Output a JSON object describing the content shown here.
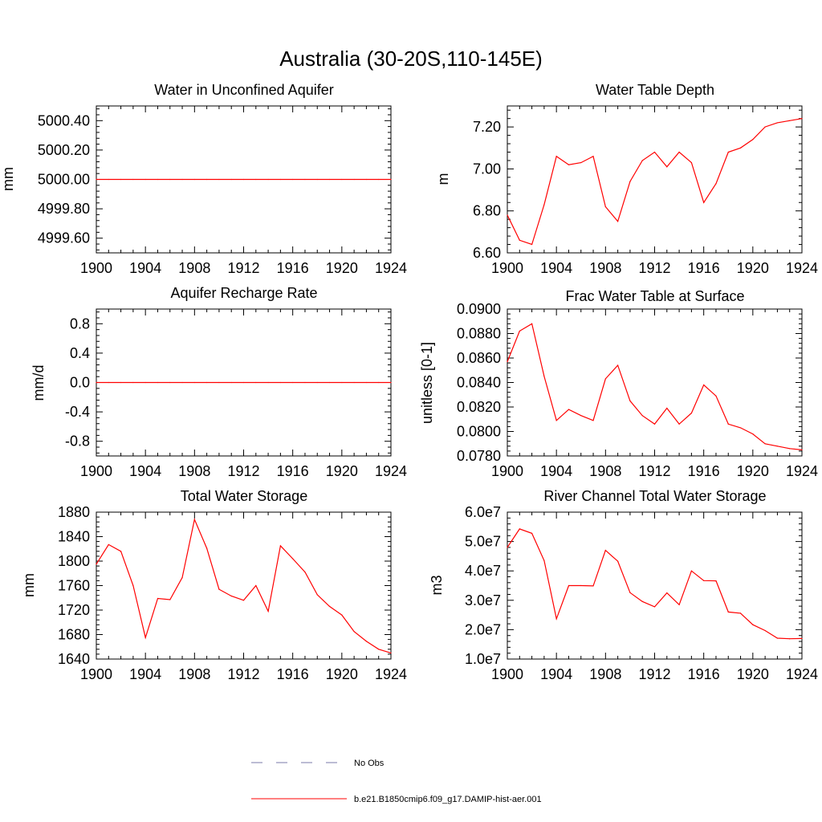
{
  "title": "Australia (30-20S,110-145E)",
  "colors": {
    "model": "#ff0000",
    "obs": "#7a7aa8"
  },
  "legend": {
    "obs_label": "No Obs",
    "model_label": "b.e21.B1850cmip6.f09_g17.DAMIP-hist-aer.001"
  },
  "chart_data": [
    {
      "type": "line",
      "title": "Water in Unconfined Aquifer",
      "ylabel": "mm",
      "xlim": [
        1900,
        1924
      ],
      "ylim": [
        4999.5,
        5000.5
      ],
      "x_ticks": [
        "1900",
        "1904",
        "1908",
        "1912",
        "1916",
        "1920",
        "1924"
      ],
      "y_ticks": [
        "4999.60",
        "4999.80",
        "5000.00",
        "5000.20",
        "5000.40"
      ],
      "x": [
        1900,
        1901,
        1902,
        1903,
        1904,
        1905,
        1906,
        1907,
        1908,
        1909,
        1910,
        1911,
        1912,
        1913,
        1914,
        1915,
        1916,
        1917,
        1918,
        1919,
        1920,
        1921,
        1922,
        1923,
        1924
      ],
      "values": [
        5000,
        5000,
        5000,
        5000,
        5000,
        5000,
        5000,
        5000,
        5000,
        5000,
        5000,
        5000,
        5000,
        5000,
        5000,
        5000,
        5000,
        5000,
        5000,
        5000,
        5000,
        5000,
        5000,
        5000,
        5000
      ]
    },
    {
      "type": "line",
      "title": "Water Table Depth",
      "ylabel": "m",
      "xlim": [
        1900,
        1924
      ],
      "ylim": [
        6.6,
        7.3
      ],
      "x_ticks": [
        "1900",
        "1904",
        "1908",
        "1912",
        "1916",
        "1920",
        "1924"
      ],
      "y_ticks": [
        "6.60",
        "6.80",
        "7.00",
        "7.20"
      ],
      "x": [
        1900,
        1901,
        1902,
        1903,
        1904,
        1905,
        1906,
        1907,
        1908,
        1909,
        1910,
        1911,
        1912,
        1913,
        1914,
        1915,
        1916,
        1917,
        1918,
        1919,
        1920,
        1921,
        1922,
        1923,
        1924
      ],
      "values": [
        6.78,
        6.66,
        6.64,
        6.83,
        7.06,
        7.02,
        7.03,
        7.06,
        6.82,
        6.75,
        6.94,
        7.04,
        7.08,
        7.01,
        7.08,
        7.03,
        6.84,
        6.93,
        7.08,
        7.1,
        7.14,
        7.2,
        7.22,
        7.23,
        7.24
      ]
    },
    {
      "type": "line",
      "title": "Aquifer Recharge Rate",
      "ylabel": "mm/d",
      "xlim": [
        1900,
        1924
      ],
      "ylim": [
        -1.0,
        1.0
      ],
      "x_ticks": [
        "1900",
        "1904",
        "1908",
        "1912",
        "1916",
        "1920",
        "1924"
      ],
      "y_ticks": [
        "-0.8",
        "-0.4",
        "0.0",
        "0.4",
        "0.8"
      ],
      "x": [
        1900,
        1901,
        1902,
        1903,
        1904,
        1905,
        1906,
        1907,
        1908,
        1909,
        1910,
        1911,
        1912,
        1913,
        1914,
        1915,
        1916,
        1917,
        1918,
        1919,
        1920,
        1921,
        1922,
        1923,
        1924
      ],
      "values": [
        0,
        0,
        0,
        0,
        0,
        0,
        0,
        0,
        0,
        0,
        0,
        0,
        0,
        0,
        0,
        0,
        0,
        0,
        0,
        0,
        0,
        0,
        0,
        0,
        0
      ]
    },
    {
      "type": "line",
      "title": "Frac Water Table at Surface",
      "ylabel": "unitless [0-1]",
      "xlim": [
        1900,
        1924
      ],
      "ylim": [
        0.078,
        0.09
      ],
      "x_ticks": [
        "1900",
        "1904",
        "1908",
        "1912",
        "1916",
        "1920",
        "1924"
      ],
      "y_ticks": [
        "0.0780",
        "0.0800",
        "0.0820",
        "0.0840",
        "0.0860",
        "0.0880",
        "0.0900"
      ],
      "x": [
        1900,
        1901,
        1902,
        1903,
        1904,
        1905,
        1906,
        1907,
        1908,
        1909,
        1910,
        1911,
        1912,
        1913,
        1914,
        1915,
        1916,
        1917,
        1918,
        1919,
        1920,
        1921,
        1922,
        1923,
        1924
      ],
      "values": [
        0.0857,
        0.0882,
        0.0888,
        0.0845,
        0.0809,
        0.0818,
        0.0813,
        0.0809,
        0.0843,
        0.0854,
        0.0825,
        0.0813,
        0.0806,
        0.0819,
        0.0806,
        0.0815,
        0.0838,
        0.0829,
        0.0806,
        0.0803,
        0.0798,
        0.079,
        0.0788,
        0.0786,
        0.0785
      ]
    },
    {
      "type": "line",
      "title": "Total Water Storage",
      "ylabel": "mm",
      "xlim": [
        1900,
        1924
      ],
      "ylim": [
        1640,
        1880
      ],
      "x_ticks": [
        "1900",
        "1904",
        "1908",
        "1912",
        "1916",
        "1920",
        "1924"
      ],
      "y_ticks": [
        "1640",
        "1680",
        "1720",
        "1760",
        "1800",
        "1840",
        "1880"
      ],
      "x": [
        1900,
        1901,
        1902,
        1903,
        1904,
        1905,
        1906,
        1907,
        1908,
        1909,
        1910,
        1911,
        1912,
        1913,
        1914,
        1915,
        1916,
        1917,
        1918,
        1919,
        1920,
        1921,
        1922,
        1923,
        1924
      ],
      "values": [
        1795,
        1827,
        1816,
        1760,
        1675,
        1739,
        1737,
        1773,
        1868,
        1821,
        1754,
        1743,
        1736,
        1760,
        1718,
        1825,
        1804,
        1782,
        1745,
        1726,
        1712,
        1685,
        1669,
        1656,
        1650
      ]
    },
    {
      "type": "line",
      "title": "River Channel Total Water Storage",
      "ylabel": "m3",
      "xlim": [
        1900,
        1924
      ],
      "ylim": [
        10000000,
        60000000
      ],
      "x_ticks": [
        "1900",
        "1904",
        "1908",
        "1912",
        "1916",
        "1920",
        "1924"
      ],
      "y_ticks": [
        "1.0e7",
        "2.0e7",
        "3.0e7",
        "4.0e7",
        "5.0e7",
        "6.0e7"
      ],
      "x": [
        1900,
        1901,
        1902,
        1903,
        1904,
        1905,
        1906,
        1907,
        1908,
        1909,
        1910,
        1911,
        1912,
        1913,
        1914,
        1915,
        1916,
        1917,
        1918,
        1919,
        1920,
        1921,
        1922,
        1923,
        1924
      ],
      "values": [
        48000000,
        54300000,
        52800000,
        43500000,
        23700000,
        35000000,
        35000000,
        34900000,
        47000000,
        43300000,
        32600000,
        29600000,
        27800000,
        32500000,
        28500000,
        40000000,
        36700000,
        36600000,
        26000000,
        25600000,
        21700000,
        19700000,
        17100000,
        16900000,
        17000000
      ]
    }
  ]
}
